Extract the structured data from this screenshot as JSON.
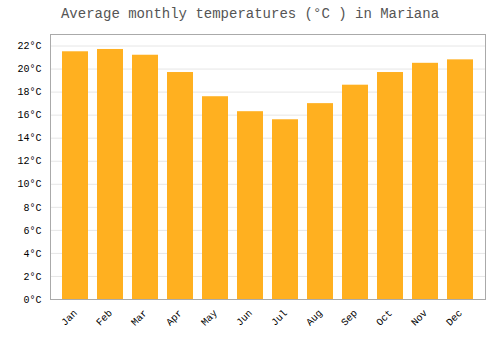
{
  "chart_data": {
    "type": "bar",
    "title": "Average monthly temperatures (°C ) in Mariana",
    "categories": [
      "Jan",
      "Feb",
      "Mar",
      "Apr",
      "May",
      "Jun",
      "Jul",
      "Aug",
      "Sep",
      "Oct",
      "Nov",
      "Dec"
    ],
    "values": [
      21.5,
      21.7,
      21.2,
      19.7,
      17.6,
      16.3,
      15.6,
      17.0,
      18.6,
      19.7,
      20.5,
      20.8
    ],
    "color": "#FFB020",
    "ylim": [
      0,
      23
    ],
    "yticks": [
      {
        "value": 0,
        "label": "0°C"
      },
      {
        "value": 2,
        "label": "2°C"
      },
      {
        "value": 4,
        "label": "4°C"
      },
      {
        "value": 6,
        "label": "6°C"
      },
      {
        "value": 8,
        "label": "8°C"
      },
      {
        "value": 10,
        "label": "10°C"
      },
      {
        "value": 12,
        "label": "12°C"
      },
      {
        "value": 14,
        "label": "14°C"
      },
      {
        "value": 16,
        "label": "16°C"
      },
      {
        "value": 18,
        "label": "18°C"
      },
      {
        "value": 20,
        "label": "20°C"
      },
      {
        "value": 22,
        "label": "22°C"
      }
    ],
    "grid": true
  }
}
